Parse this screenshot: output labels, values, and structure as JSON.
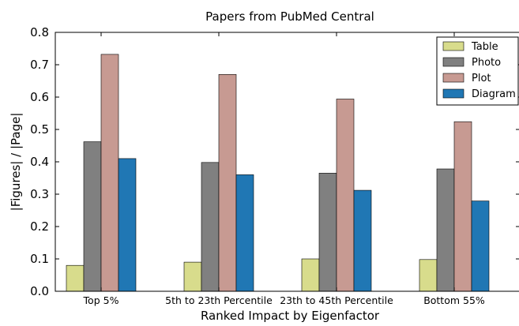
{
  "chart_data": {
    "type": "bar",
    "title": "Papers from PubMed Central",
    "xlabel": "Ranked Impact by Eigenfactor",
    "ylabel": "|Figures| / |Page|",
    "categories": [
      "Top 5%",
      "5th to 23th Percentile",
      "23th to 45th Percentile",
      "Bottom 55%"
    ],
    "ylim": [
      0.0,
      0.8
    ],
    "yticks": [
      "0.0",
      "0.1",
      "0.2",
      "0.3",
      "0.4",
      "0.5",
      "0.6",
      "0.7",
      "0.8"
    ],
    "legend_position": "top-right",
    "grid": false,
    "series": [
      {
        "name": "Table",
        "color": "#d8dc8c",
        "values": [
          0.08,
          0.09,
          0.1,
          0.098
        ]
      },
      {
        "name": "Photo",
        "color": "#808080",
        "values": [
          0.462,
          0.398,
          0.365,
          0.378
        ]
      },
      {
        "name": "Plot",
        "color": "#c79a92",
        "values": [
          0.732,
          0.67,
          0.594,
          0.524
        ]
      },
      {
        "name": "Diagram",
        "color": "#2077b4",
        "values": [
          0.41,
          0.36,
          0.312,
          0.279
        ]
      }
    ]
  }
}
